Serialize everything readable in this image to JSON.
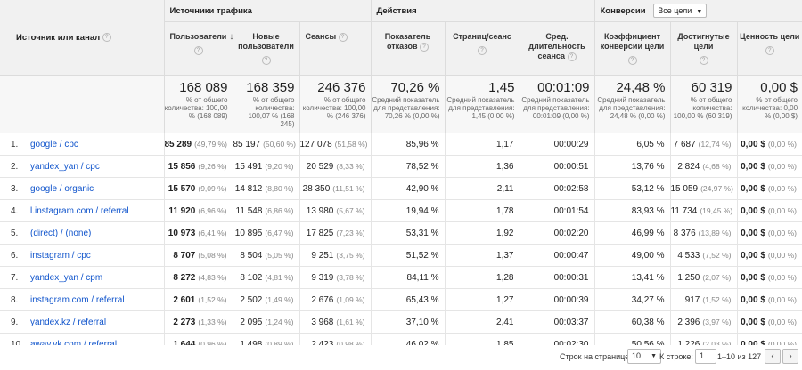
{
  "headers": {
    "source_channel": "Источник или канал",
    "group_traffic": "Источники трафика",
    "group_actions": "Действия",
    "group_conversions": "Конверсии",
    "goals_select": "Все цели",
    "col_users": "Пользователи",
    "col_new_users": "Новые пользователи",
    "col_sessions": "Сеансы",
    "col_bounce": "Показатель отказов",
    "col_pages": "Страниц/сеанс",
    "col_duration": "Сред. длительность сеанса",
    "col_conv_rate": "Коэффициент конверсии цели",
    "col_goals": "Достигнутые цели",
    "col_value": "Ценность цели"
  },
  "totals": {
    "users": {
      "value": "168 089",
      "sub": "% от общего количества: 100,00 % (168 089)"
    },
    "new_users": {
      "value": "168 359",
      "sub": "% от общего количества: 100,07 % (168 245)"
    },
    "sessions": {
      "value": "246 376",
      "sub": "% от общего количества: 100,00 % (246 376)"
    },
    "bounce": {
      "value": "70,26 %",
      "sub": "Средний показатель для представления: 70,26 % (0,00 %)"
    },
    "pages": {
      "value": "1,45",
      "sub": "Средний показатель для представления: 1,45 (0,00 %)"
    },
    "duration": {
      "value": "00:01:09",
      "sub": "Средний показатель для представления: 00:01:09 (0,00 %)"
    },
    "conv_rate": {
      "value": "24,48 %",
      "sub": "Средний показатель для представления: 24,48 % (0,00 %)"
    },
    "goals": {
      "value": "60 319",
      "sub": "% от общего количества: 100,00 % (60 319)"
    },
    "value": {
      "value": "0,00 $",
      "sub": "% от общего количества: 0,00 % (0,00 $)"
    }
  },
  "rows": [
    {
      "num": "1.",
      "src": "google / cpc",
      "users": "85 289",
      "users_p": "(49,79 %)",
      "new": "85 197",
      "new_p": "(50,60 %)",
      "sess": "127 078",
      "sess_p": "(51,58 %)",
      "bounce": "85,96 %",
      "pages": "1,17",
      "dur": "00:00:29",
      "conv": "6,05 %",
      "goals": "7 687",
      "goals_p": "(12,74 %)",
      "val": "0,00 $",
      "val_p": "(0,00 %)"
    },
    {
      "num": "2.",
      "src": "yandex_yan / cpc",
      "users": "15 856",
      "users_p": "(9,26 %)",
      "new": "15 491",
      "new_p": "(9,20 %)",
      "sess": "20 529",
      "sess_p": "(8,33 %)",
      "bounce": "78,52 %",
      "pages": "1,36",
      "dur": "00:00:51",
      "conv": "13,76 %",
      "goals": "2 824",
      "goals_p": "(4,68 %)",
      "val": "0,00 $",
      "val_p": "(0,00 %)"
    },
    {
      "num": "3.",
      "src": "google / organic",
      "users": "15 570",
      "users_p": "(9,09 %)",
      "new": "14 812",
      "new_p": "(8,80 %)",
      "sess": "28 350",
      "sess_p": "(11,51 %)",
      "bounce": "42,90 %",
      "pages": "2,11",
      "dur": "00:02:58",
      "conv": "53,12 %",
      "goals": "15 059",
      "goals_p": "(24,97 %)",
      "val": "0,00 $",
      "val_p": "(0,00 %)"
    },
    {
      "num": "4.",
      "src": "l.instagram.com / referral",
      "users": "11 920",
      "users_p": "(6,96 %)",
      "new": "11 548",
      "new_p": "(6,86 %)",
      "sess": "13 980",
      "sess_p": "(5,67 %)",
      "bounce": "19,94 %",
      "pages": "1,78",
      "dur": "00:01:54",
      "conv": "83,93 %",
      "goals": "11 734",
      "goals_p": "(19,45 %)",
      "val": "0,00 $",
      "val_p": "(0,00 %)"
    },
    {
      "num": "5.",
      "src": "(direct) / (none)",
      "users": "10 973",
      "users_p": "(6,41 %)",
      "new": "10 895",
      "new_p": "(6,47 %)",
      "sess": "17 825",
      "sess_p": "(7,23 %)",
      "bounce": "53,31 %",
      "pages": "1,92",
      "dur": "00:02:20",
      "conv": "46,99 %",
      "goals": "8 376",
      "goals_p": "(13,89 %)",
      "val": "0,00 $",
      "val_p": "(0,00 %)"
    },
    {
      "num": "6.",
      "src": "instagram / cpc",
      "users": "8 707",
      "users_p": "(5,08 %)",
      "new": "8 504",
      "new_p": "(5,05 %)",
      "sess": "9 251",
      "sess_p": "(3,75 %)",
      "bounce": "51,52 %",
      "pages": "1,37",
      "dur": "00:00:47",
      "conv": "49,00 %",
      "goals": "4 533",
      "goals_p": "(7,52 %)",
      "val": "0,00 $",
      "val_p": "(0,00 %)"
    },
    {
      "num": "7.",
      "src": "yandex_yan / cpm",
      "users": "8 272",
      "users_p": "(4,83 %)",
      "new": "8 102",
      "new_p": "(4,81 %)",
      "sess": "9 319",
      "sess_p": "(3,78 %)",
      "bounce": "84,11 %",
      "pages": "1,28",
      "dur": "00:00:31",
      "conv": "13,41 %",
      "goals": "1 250",
      "goals_p": "(2,07 %)",
      "val": "0,00 $",
      "val_p": "(0,00 %)"
    },
    {
      "num": "8.",
      "src": "instagram.com / referral",
      "users": "2 601",
      "users_p": "(1,52 %)",
      "new": "2 502",
      "new_p": "(1,49 %)",
      "sess": "2 676",
      "sess_p": "(1,09 %)",
      "bounce": "65,43 %",
      "pages": "1,27",
      "dur": "00:00:39",
      "conv": "34,27 %",
      "goals": "917",
      "goals_p": "(1,52 %)",
      "val": "0,00 $",
      "val_p": "(0,00 %)"
    },
    {
      "num": "9.",
      "src": "yandex.kz / referral",
      "users": "2 273",
      "users_p": "(1,33 %)",
      "new": "2 095",
      "new_p": "(1,24 %)",
      "sess": "3 968",
      "sess_p": "(1,61 %)",
      "bounce": "37,10 %",
      "pages": "2,41",
      "dur": "00:03:37",
      "conv": "60,38 %",
      "goals": "2 396",
      "goals_p": "(3,97 %)",
      "val": "0,00 $",
      "val_p": "(0,00 %)"
    },
    {
      "num": "10.",
      "src": "away.vk.com / referral",
      "users": "1 644",
      "users_p": "(0,96 %)",
      "new": "1 498",
      "new_p": "(0,89 %)",
      "sess": "2 423",
      "sess_p": "(0,98 %)",
      "bounce": "46,02 %",
      "pages": "1,85",
      "dur": "00:02:30",
      "conv": "50,56 %",
      "goals": "1 226",
      "goals_p": "(2,03 %)",
      "val": "0,00 $",
      "val_p": "(0,00 %)"
    }
  ],
  "footer": {
    "rows_per_page_label": "Строк на странице:",
    "rows_per_page_value": "10",
    "go_to_label": "К строке:",
    "go_to_value": "1",
    "range": "1–10 из 127"
  }
}
